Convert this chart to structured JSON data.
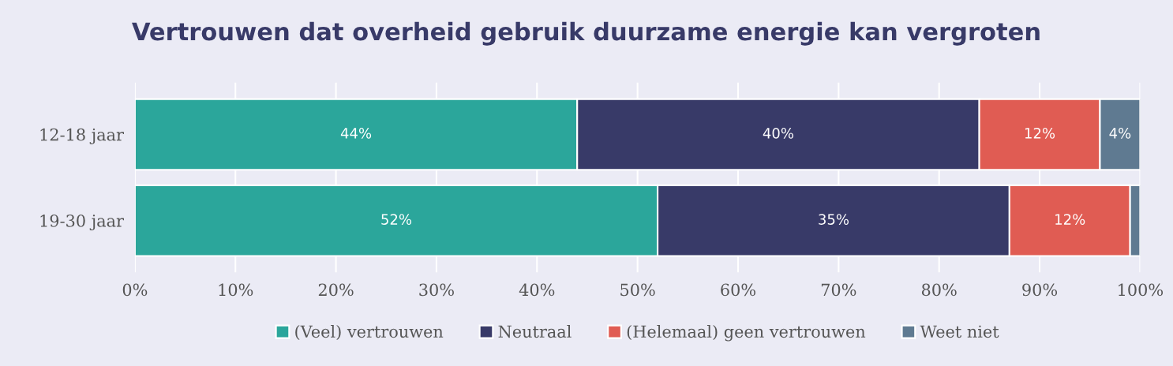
{
  "chart_data": {
    "type": "bar",
    "orientation": "horizontal",
    "stacked": true,
    "title": "Vertrouwen dat overheid gebruik duurzame energie kan vergroten",
    "categories": [
      "12-18 jaar",
      "19-30 jaar"
    ],
    "series": [
      {
        "name": "(Veel) vertrouwen",
        "color": "#2ba69b",
        "values": [
          44,
          52
        ],
        "value_labels": [
          "44%",
          "52%"
        ]
      },
      {
        "name": "Neutraal",
        "color": "#383a68",
        "values": [
          40,
          35
        ],
        "value_labels": [
          "40%",
          "35%"
        ]
      },
      {
        "name": "(Helemaal) geen vertrouwen",
        "color": "#e05c53",
        "values": [
          12,
          12
        ],
        "value_labels": [
          "12%",
          "12%"
        ]
      },
      {
        "name": "Weet niet",
        "color": "#5f7a91",
        "values": [
          4,
          1
        ],
        "value_labels": [
          "4%",
          null
        ]
      }
    ],
    "xlim": [
      0,
      100
    ],
    "xticks": [
      {
        "value": 0,
        "label": "0%"
      },
      {
        "value": 10,
        "label": "10%"
      },
      {
        "value": 20,
        "label": "20%"
      },
      {
        "value": 30,
        "label": "30%"
      },
      {
        "value": 40,
        "label": "40%"
      },
      {
        "value": 50,
        "label": "50%"
      },
      {
        "value": 60,
        "label": "60%"
      },
      {
        "value": 70,
        "label": "70%"
      },
      {
        "value": 80,
        "label": "80%"
      },
      {
        "value": 90,
        "label": "90%"
      },
      {
        "value": 100,
        "label": "100%"
      }
    ],
    "grid": "x",
    "legend": "bottom"
  }
}
